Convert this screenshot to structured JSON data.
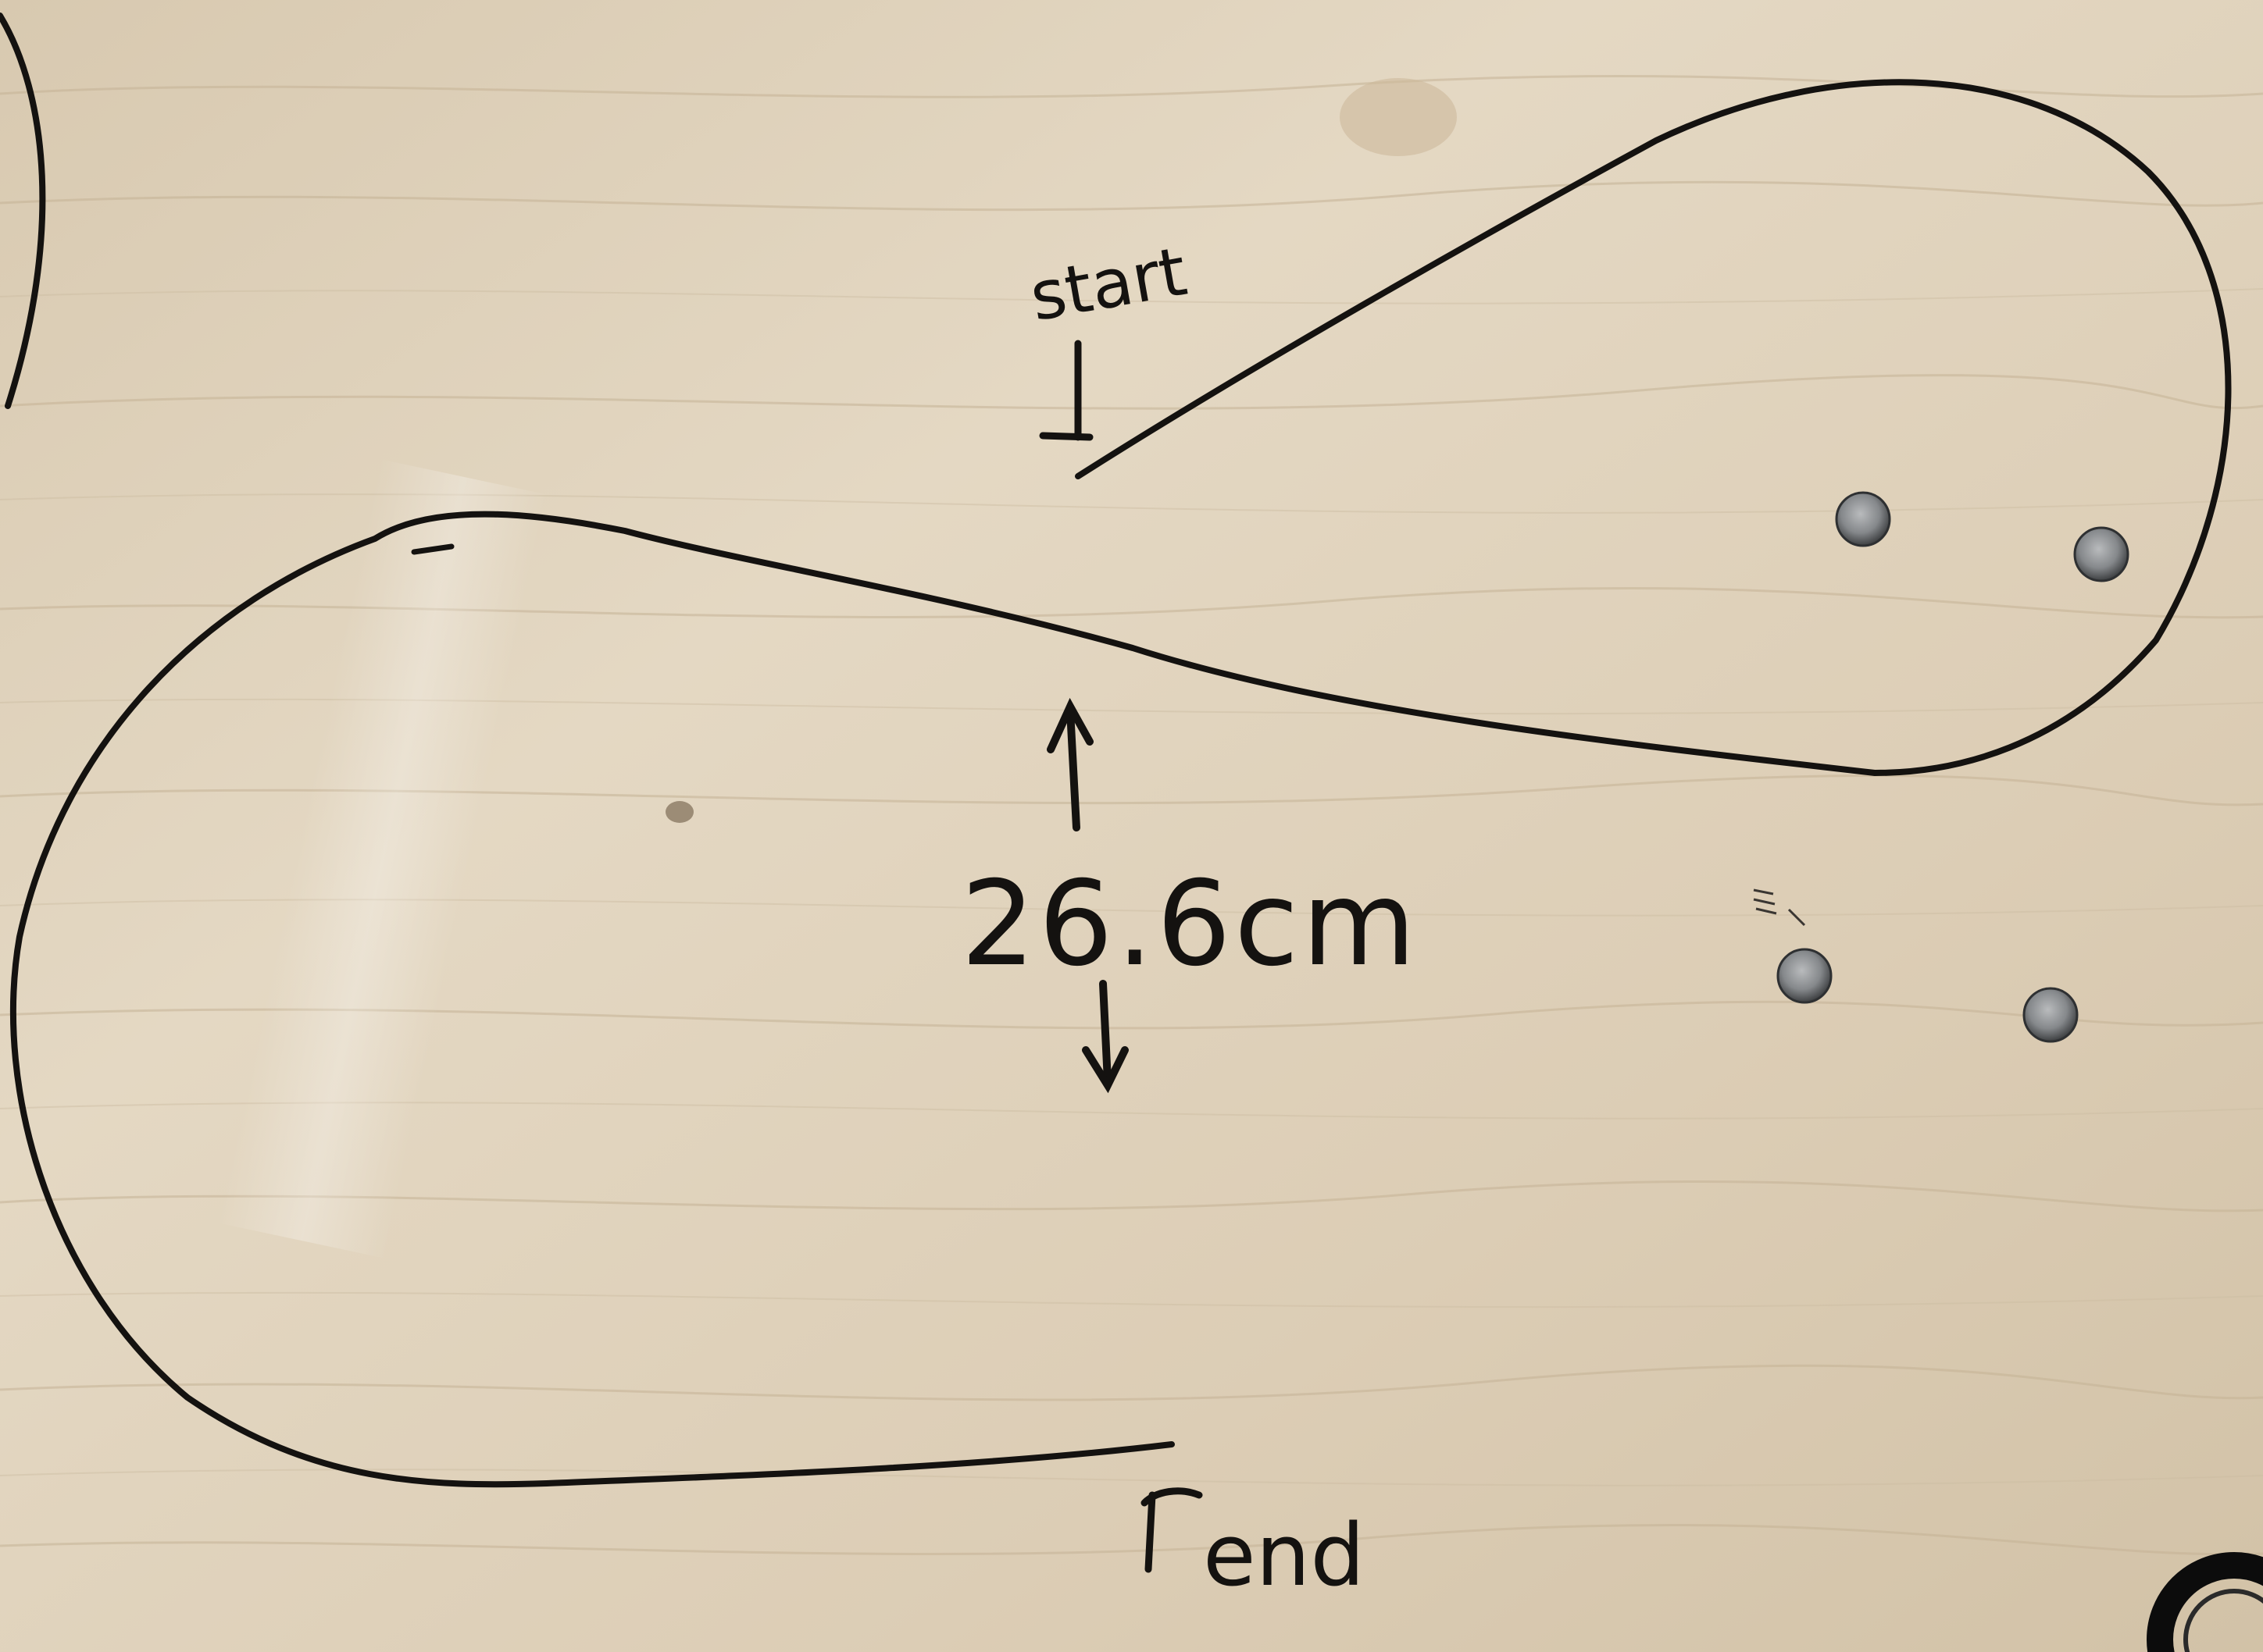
{
  "photo": {
    "surface": "plywood board",
    "colors": {
      "wood_base": "#dccfb8",
      "wood_light": "#e8ddc9",
      "wood_grain": "#c8b79b",
      "ink": "#141210",
      "magnet": "#8a8c8e"
    }
  },
  "labels": {
    "start": "start",
    "measurement": "26.6cm",
    "end": "end"
  },
  "markers": {
    "magnet_count": 4
  }
}
